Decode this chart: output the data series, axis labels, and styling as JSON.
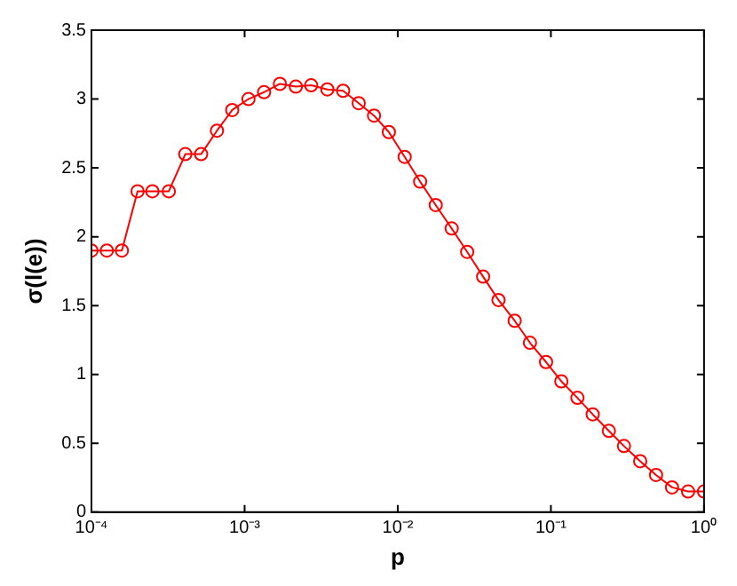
{
  "chart_data": {
    "type": "line",
    "xlabel": "p",
    "ylabel": "σ(l(e))",
    "log": "x",
    "grid": false,
    "legend": false,
    "marker": "circle",
    "line_style": "solid",
    "xlim": [
      0.0001,
      1
    ],
    "xticks": [
      {
        "value": 0.0001,
        "label": "10⁻⁴"
      },
      {
        "value": 0.001,
        "label": "10⁻³"
      },
      {
        "value": 0.01,
        "label": "10⁻²"
      },
      {
        "value": 0.1,
        "label": "10⁻¹"
      },
      {
        "value": 1,
        "label": "10⁰"
      }
    ],
    "ylim": [
      0,
      3.5
    ],
    "yticks": [
      0,
      0.5,
      1,
      1.5,
      2,
      2.5,
      3,
      3.5
    ],
    "series": [
      {
        "color": "#ff0000",
        "x": [
          0.0001,
          0.000126,
          0.000158,
          0.0002,
          0.00025,
          0.00032,
          0.00041,
          0.00052,
          0.00066,
          0.00083,
          0.00106,
          0.00134,
          0.0017,
          0.00216,
          0.00272,
          0.00347,
          0.0044,
          0.00556,
          0.007,
          0.00875,
          0.0111,
          0.014,
          0.0177,
          0.0225,
          0.0284,
          0.0361,
          0.0455,
          0.058,
          0.073,
          0.093,
          0.117,
          0.149,
          0.1875,
          0.239,
          0.3,
          0.383,
          0.486,
          0.618,
          0.787,
          1
        ],
        "values": [
          1.9,
          1.9,
          1.9,
          2.33,
          2.33,
          2.33,
          2.6,
          2.6,
          2.77,
          2.92,
          3.0,
          3.05,
          3.11,
          3.09,
          3.1,
          3.07,
          3.06,
          2.97,
          2.88,
          2.76,
          2.58,
          2.4,
          2.23,
          2.06,
          1.89,
          1.71,
          1.54,
          1.39,
          1.23,
          1.09,
          0.95,
          0.83,
          0.71,
          0.59,
          0.48,
          0.37,
          0.27,
          0.18,
          0.15,
          0.15
        ]
      }
    ]
  }
}
